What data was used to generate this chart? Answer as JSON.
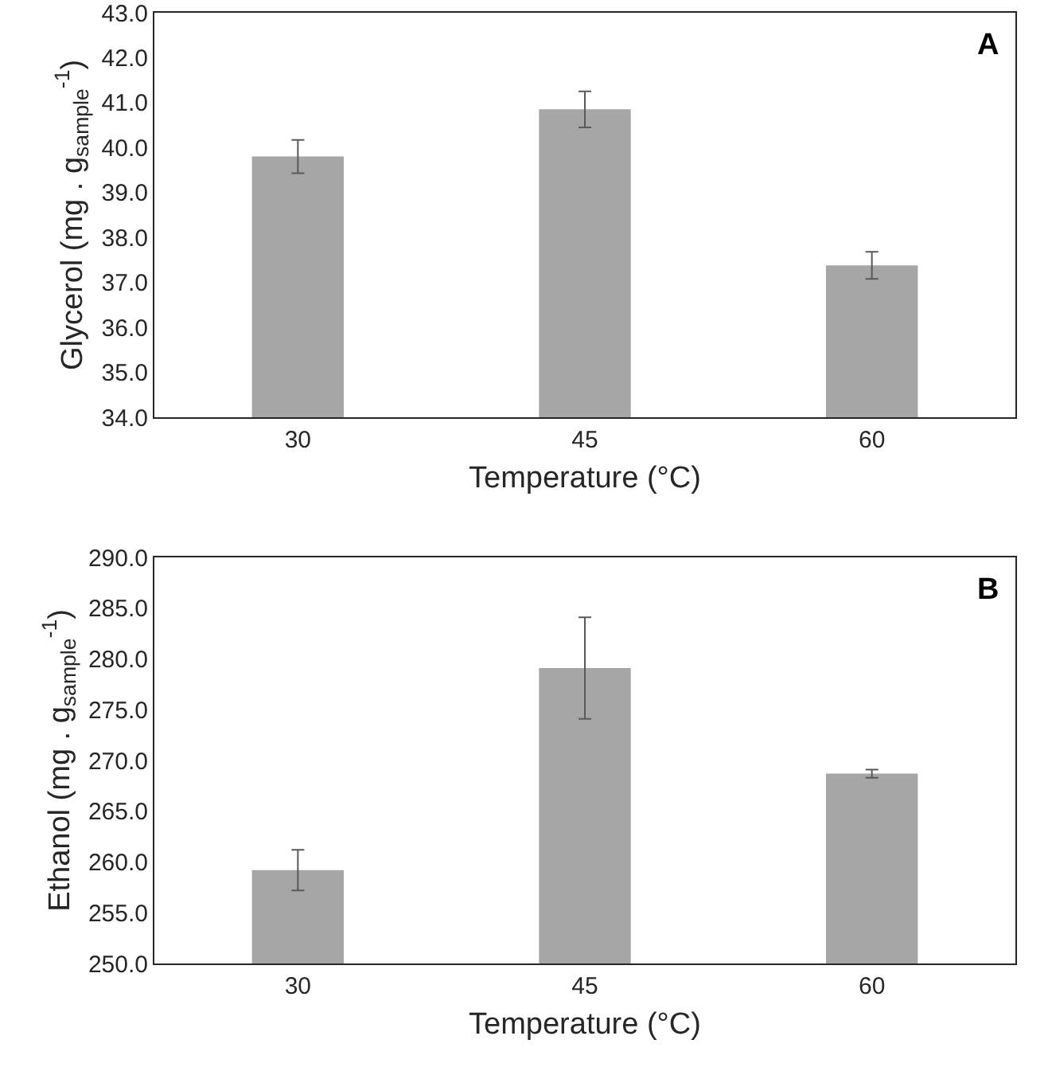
{
  "chart_data": [
    {
      "type": "bar",
      "categories": [
        "30",
        "45",
        "60"
      ],
      "values": [
        39.8,
        40.85,
        37.38
      ],
      "errors": [
        0.37,
        0.4,
        0.3
      ],
      "color": "#a6a6a6",
      "xlabel": "Temperature (°C)",
      "ylabel": "Glycerol (mg . g$_{sample}$$^{-1}$)",
      "ylim": [
        34.0,
        43.0
      ],
      "yticks": [
        {
          "value": 34,
          "label": "34.0"
        },
        {
          "value": 35,
          "label": "35.0"
        },
        {
          "value": 36,
          "label": "36.0"
        },
        {
          "value": 37,
          "label": "37.0"
        },
        {
          "value": 38,
          "label": "38.0"
        },
        {
          "value": 39,
          "label": "39.0"
        },
        {
          "value": 40,
          "label": "40.0"
        },
        {
          "value": 41,
          "label": "41.0"
        },
        {
          "value": 42,
          "label": "42.0"
        },
        {
          "value": 43,
          "label": "43.0"
        }
      ],
      "grid": false,
      "annotations": [
        "A"
      ]
    },
    {
      "type": "bar",
      "categories": [
        "30",
        "45",
        "60"
      ],
      "values": [
        259.2,
        279.1,
        268.7
      ],
      "errors": [
        2.0,
        5.0,
        0.4
      ],
      "color": "#a6a6a6",
      "xlabel": "Temperature (°C)",
      "ylabel": "Ethanol (mg . g$_{sample}$$^{-1}$)",
      "ylim": [
        250.0,
        290.0
      ],
      "yticks": [
        {
          "value": 250,
          "label": "250.0"
        },
        {
          "value": 255,
          "label": "255.0"
        },
        {
          "value": 260,
          "label": "260.0"
        },
        {
          "value": 265,
          "label": "265.0"
        },
        {
          "value": 270,
          "label": "270.0"
        },
        {
          "value": 275,
          "label": "275.0"
        },
        {
          "value": 280,
          "label": "280.0"
        },
        {
          "value": 285,
          "label": "285.0"
        },
        {
          "value": 290,
          "label": "290.0"
        }
      ],
      "grid": false,
      "annotations": [
        "B"
      ]
    }
  ]
}
